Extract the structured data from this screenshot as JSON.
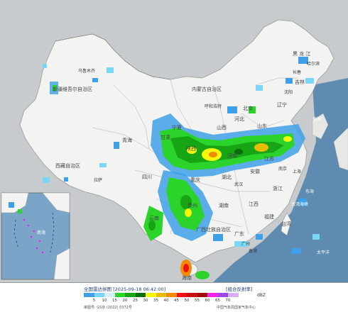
{
  "legend": {
    "title": "全国雷达拼图 [2025-09-18 06:42:00]",
    "product": "[组合反射率]",
    "unit": "dBZ",
    "approval": "审图号: GS京 (2022) 0372号",
    "credit": "中国气象局国家气象中心",
    "ticks": [
      "5",
      "10",
      "15",
      "20",
      "25",
      "30",
      "35",
      "40",
      "45",
      "50",
      "55",
      "60",
      "65",
      "70"
    ],
    "colors": [
      "#3ea0e8",
      "#7ad7f5",
      "#d4f1f9",
      "#2bd32a",
      "#18a515",
      "#0c6e0a",
      "#f6f70a",
      "#e8bd06",
      "#f08b05",
      "#f01010",
      "#c80e0e",
      "#a00c0c",
      "#ee23ec",
      "#9c46e9",
      "#d6b2f4"
    ]
  },
  "map_labels": {
    "north": [
      "黑",
      "龙",
      "江"
    ],
    "jilin": "吉林",
    "liaoning": "辽宁",
    "beijing": "北京",
    "hebei": "河北",
    "shanxi": "山西",
    "shandong": "山东",
    "henan": "河南",
    "hubei": "湖北",
    "jiangsu": "江苏",
    "anhui": "安徽",
    "zhejiang": "浙江",
    "jiangxi": "江西",
    "fujian": "福建",
    "hunan": "湖南",
    "guangdong": "广东",
    "guangxi": "广西壮族自治区",
    "guizhou": "贵州",
    "yunnan": "云南",
    "sichuan": "四川",
    "chongqing": "重庆",
    "shaanxi": "陕西",
    "gansu": "甘肃",
    "qinghai": "青海",
    "ningxia": "宁夏",
    "xinjiang": "新疆维吾尔自治区",
    "xizang": "西藏自治区",
    "neimenggu": "内蒙古自治区",
    "taiwan": "台湾",
    "hainan": "海南",
    "urumqi": "乌鲁木齐",
    "lhasa": "拉萨",
    "harbin": "哈尔滨",
    "changchun": "长春",
    "shenyang": "沈阳",
    "hohhot": "呼和浩特",
    "shanghai": "上海",
    "nanjing": "南京",
    "wuhan": "武汉",
    "guangzhou": "广州",
    "hongkong": "香港",
    "huanghai": "黄海",
    "donghai": "东海",
    "nanhai": "南海",
    "taiping": "太平洋",
    "taiwan_strait": "台湾海峡"
  }
}
